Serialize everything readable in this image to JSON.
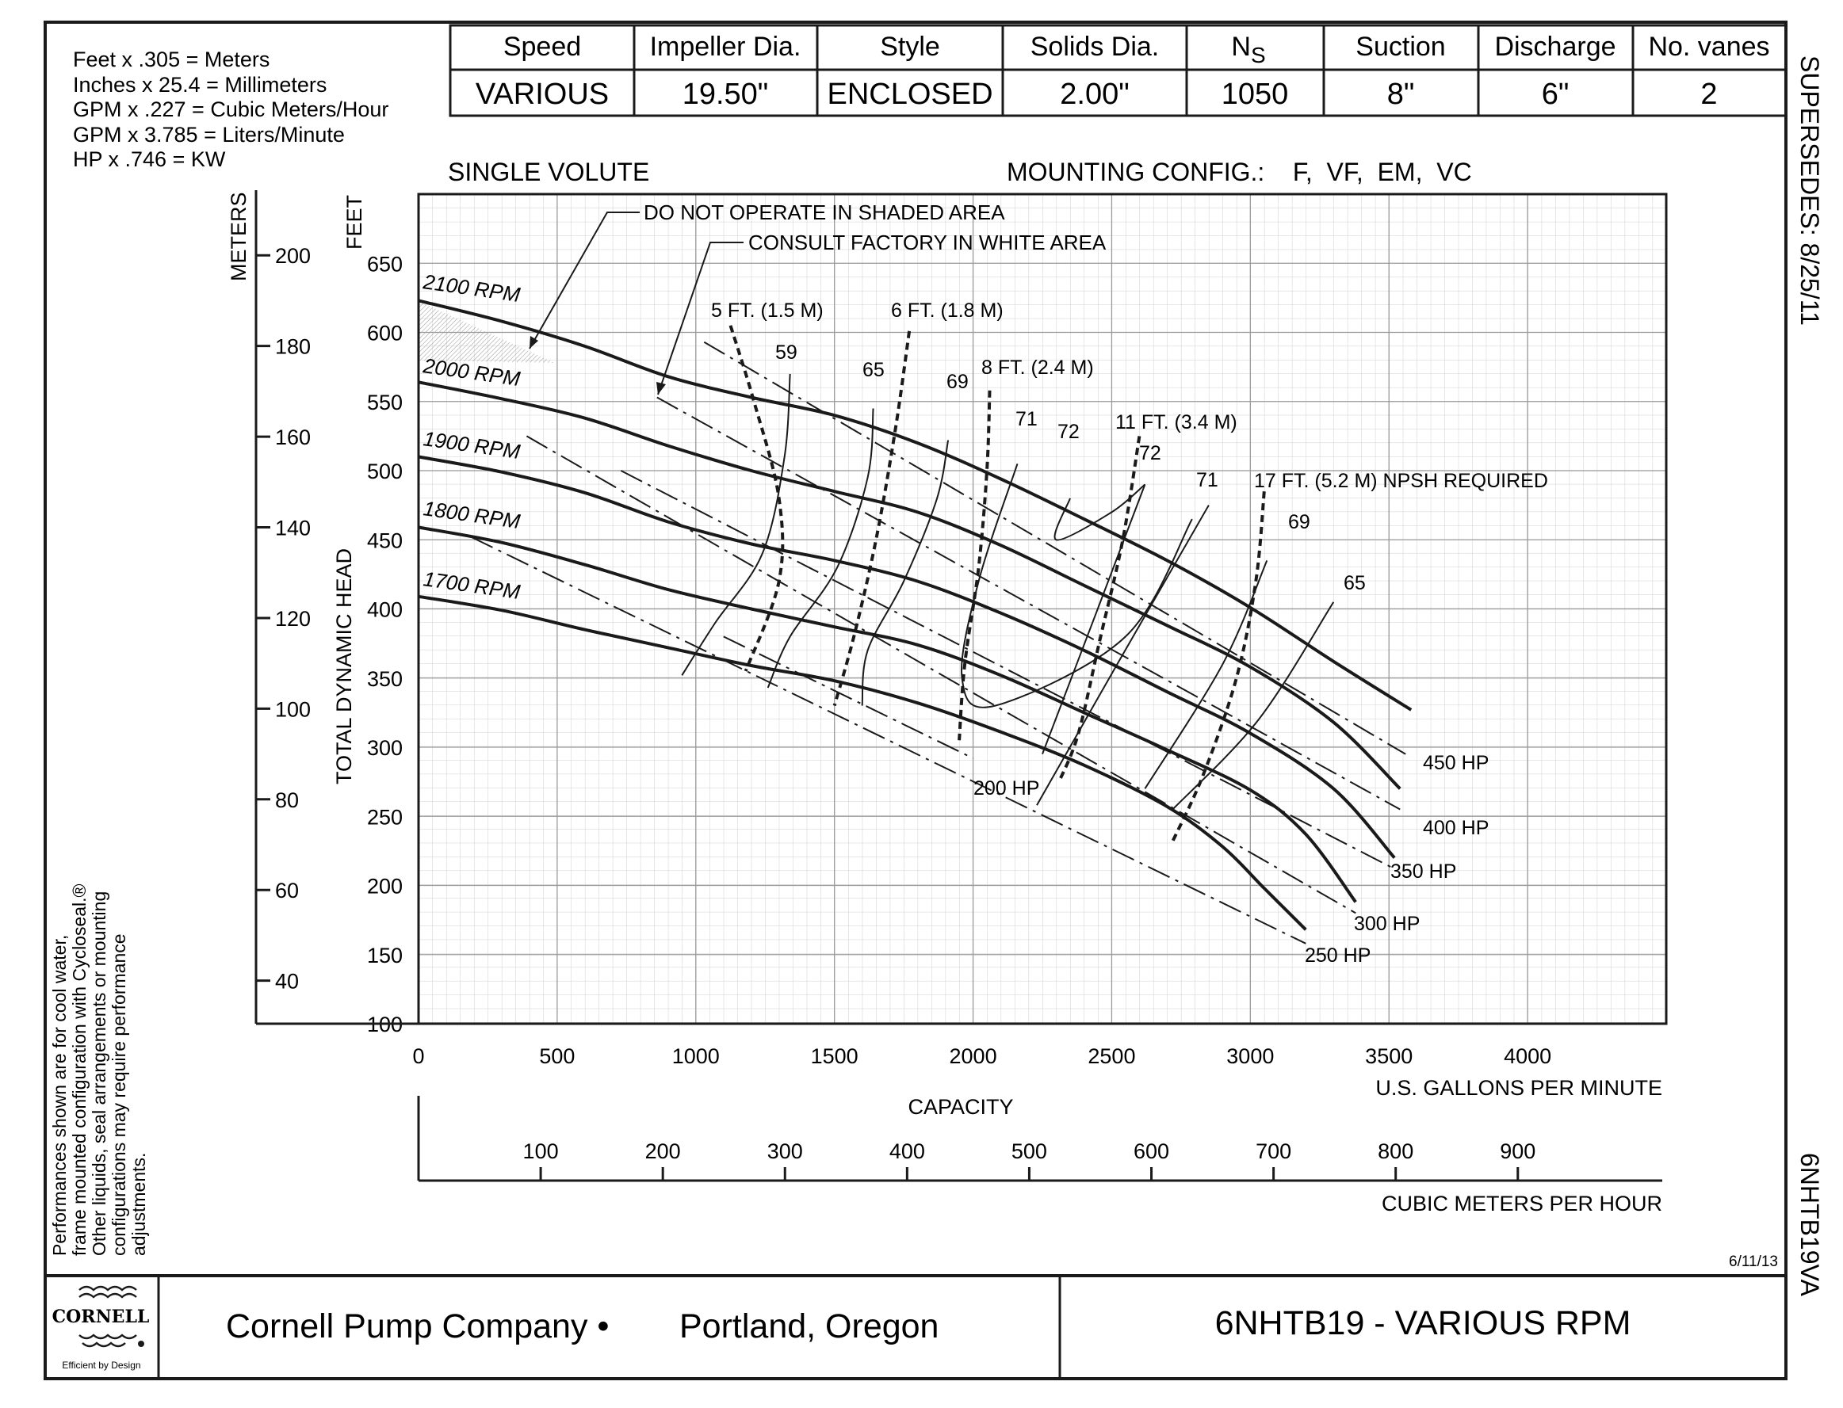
{
  "conversions": [
    "Feet x .305 = Meters",
    "Inches x 25.4 = Millimeters",
    "GPM x .227 = Cubic Meters/Hour",
    "GPM x 3.785 = Liters/Minute",
    "HP x .746 = KW"
  ],
  "spec_table": {
    "headers": [
      "Speed",
      "Impeller Dia.",
      "Style",
      "Solids Dia.",
      "N",
      "Suction",
      "Discharge",
      "No. vanes"
    ],
    "ns_subscript": "S",
    "values": [
      "VARIOUS",
      "19.50\"",
      "ENCLOSED",
      "2.00\"",
      "1050",
      "8\"",
      "6\"",
      "2"
    ]
  },
  "supersedes": "SUPERSEDES:  8/25/11",
  "side_code": "6NHTB19VA",
  "volute_label": "SINGLE VOLUTE",
  "mounting": "MOUNTING CONFIG.:    F,  VF,  EM,  VC",
  "performance_note": [
    "Performances shown are for cool water,",
    "frame mounted configuration with Cycloseal.®",
    "Other liquids, seal arrangements or mounting",
    "configurations may require performance",
    "adjustments."
  ],
  "date_code": "6/11/13",
  "footer": {
    "logo_text": "CORNELL",
    "tagline": "Efficient by Design",
    "company": "Cornell Pump Company •",
    "location": "Portland, Oregon",
    "model": "6NHTB19 - VARIOUS RPM"
  },
  "chart_data": {
    "type": "line",
    "xlabel": "U.S. GALLONS PER MINUTE",
    "ylabel": "TOTAL DYNAMIC HEAD",
    "y_unit_label": "FEET",
    "secondary_y_label": "METERS",
    "secondary_x_label": "CUBIC METERS PER HOUR",
    "capacity_label": "CAPACITY",
    "xlim": [
      0,
      4500
    ],
    "ylim": [
      100,
      700
    ],
    "x_ticks": [
      0,
      500,
      1000,
      1500,
      2000,
      2500,
      3000,
      3500,
      4000
    ],
    "y_ticks": [
      100,
      150,
      200,
      250,
      300,
      350,
      400,
      450,
      500,
      550,
      600,
      650
    ],
    "meters_ticks": [
      40,
      60,
      80,
      100,
      120,
      140,
      160,
      180,
      200
    ],
    "m3h_ticks": [
      100,
      200,
      300,
      400,
      500,
      600,
      700,
      800,
      900
    ],
    "grid": true,
    "series": [
      {
        "name": "2100 RPM",
        "x": [
          0,
          300,
          600,
          900,
          1200,
          1500,
          1800,
          2100,
          2400,
          2700,
          3000,
          3300,
          3580
        ],
        "y": [
          623,
          608,
          590,
          568,
          553,
          540,
          520,
          494,
          465,
          435,
          401,
          362,
          327
        ]
      },
      {
        "name": "2000 RPM",
        "x": [
          0,
          300,
          600,
          900,
          1200,
          1500,
          1800,
          2100,
          2400,
          2700,
          3000,
          3300,
          3540
        ],
        "y": [
          564,
          552,
          538,
          518,
          500,
          485,
          470,
          446,
          417,
          388,
          358,
          318,
          270
        ]
      },
      {
        "name": "1900 RPM",
        "x": [
          0,
          300,
          600,
          900,
          1200,
          1500,
          1800,
          2100,
          2400,
          2700,
          3000,
          3300,
          3520
        ],
        "y": [
          510,
          499,
          484,
          463,
          447,
          435,
          420,
          397,
          370,
          340,
          310,
          270,
          220
        ]
      },
      {
        "name": "1800 RPM",
        "x": [
          0,
          300,
          600,
          900,
          1200,
          1500,
          1800,
          2100,
          2400,
          2700,
          3000,
          3200,
          3380
        ],
        "y": [
          459,
          448,
          432,
          414,
          400,
          387,
          374,
          352,
          325,
          298,
          269,
          237,
          188
        ]
      },
      {
        "name": "1700 RPM",
        "x": [
          0,
          300,
          600,
          900,
          1200,
          1500,
          1800,
          2100,
          2400,
          2700,
          2900,
          3050,
          3200
        ],
        "y": [
          409,
          399,
          385,
          372,
          359,
          348,
          332,
          311,
          287,
          257,
          228,
          198,
          168
        ]
      }
    ],
    "rpm_labels": [
      "2100 RPM",
      "2000 RPM",
      "1900 RPM",
      "1800 RPM",
      "1700 RPM"
    ],
    "hp_lines": [
      {
        "name": "450 HP",
        "x": [
          1030,
          3560
        ],
        "y": [
          593,
          295
        ]
      },
      {
        "name": "400 HP",
        "x": [
          860,
          3540
        ],
        "y": [
          553,
          255
        ]
      },
      {
        "name": "350 HP",
        "x": [
          730,
          3520
        ],
        "y": [
          500,
          212
        ]
      },
      {
        "name": "300 HP",
        "x": [
          390,
          3380
        ],
        "y": [
          525,
          180
        ]
      },
      {
        "name": "250 HP",
        "x": [
          190,
          3200
        ],
        "y": [
          452,
          158
        ]
      },
      {
        "name": "200 HP",
        "x": [
          1100,
          2000
        ],
        "y": [
          380,
          292
        ]
      }
    ],
    "npsh_required_label": "17 FT. (5.2 M) NPSH REQUIRED",
    "npsh_curves": [
      {
        "name": "5 FT. (1.5 M)",
        "x": [
          1125,
          1210,
          1300,
          1300,
          1180
        ],
        "y": [
          605,
          550,
          480,
          420,
          355
        ]
      },
      {
        "name": "6 FT. (1.8 M)",
        "x": [
          1770,
          1720,
          1650,
          1570,
          1500
        ],
        "y": [
          601,
          530,
          450,
          380,
          330
        ]
      },
      {
        "name": "8 FT. (2.4 M)",
        "x": [
          2060,
          2050,
          2020,
          1970,
          1950
        ],
        "y": [
          558,
          500,
          430,
          360,
          305
        ]
      },
      {
        "name": "11 FT. (3.4 M)",
        "x": [
          2600,
          2540,
          2460,
          2380,
          2310
        ],
        "y": [
          525,
          450,
          380,
          310,
          275
        ]
      },
      {
        "name": "17 FT. (5.2 M)",
        "x": [
          3050,
          3020,
          2950,
          2830,
          2720
        ],
        "y": [
          485,
          420,
          350,
          280,
          232
        ]
      }
    ],
    "efficiency_curves": [
      {
        "name": "59",
        "x": [
          1340,
          1320,
          1240,
          1070,
          950
        ],
        "y": [
          570,
          510,
          440,
          390,
          352
        ]
      },
      {
        "name": "65",
        "x": [
          1640,
          1620,
          1510,
          1340,
          1260
        ],
        "y": [
          545,
          495,
          430,
          380,
          343
        ]
      },
      {
        "name": "69",
        "x": [
          1910,
          1870,
          1750,
          1620,
          1600
        ],
        "y": [
          522,
          480,
          420,
          370,
          330
        ]
      },
      {
        "name": "71",
        "x": [
          2160,
          2020,
          1960,
          2080,
          2550,
          2790
        ],
        "y": [
          505,
          420,
          350,
          330,
          380,
          465
        ]
      },
      {
        "name": "72",
        "x": [
          2350,
          2300,
          2500,
          2620
        ],
        "y": [
          480,
          450,
          470,
          490
        ]
      },
      {
        "name": "72",
        "x": [
          2620,
          2440,
          2250
        ],
        "y": [
          490,
          395,
          295
        ]
      },
      {
        "name": "71",
        "x": [
          2850,
          2520,
          2230
        ],
        "y": [
          475,
          360,
          258
        ]
      },
      {
        "name": "69",
        "x": [
          3060,
          2900,
          2620
        ],
        "y": [
          435,
          360,
          270
        ]
      },
      {
        "name": "65",
        "x": [
          3300,
          3030,
          2720
        ],
        "y": [
          405,
          320,
          255
        ]
      }
    ],
    "efficiency_labels": [
      "59",
      "65",
      "69",
      "71",
      "72",
      "72",
      "71",
      "69",
      "65"
    ],
    "annotations": {
      "shaded": "DO NOT OPERATE IN SHADED AREA",
      "white": "CONSULT FACTORY IN WHITE AREA"
    }
  }
}
